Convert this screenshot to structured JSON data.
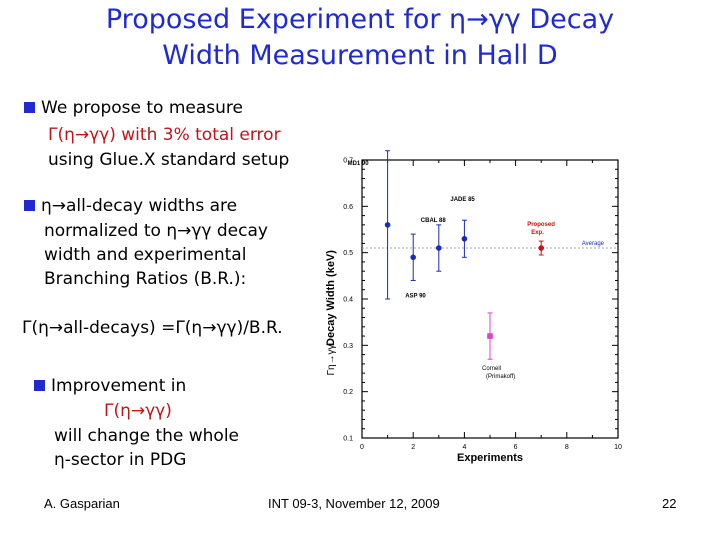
{
  "slide": {
    "title_line1": "Proposed Experiment for η→γγ Decay",
    "title_line2": "Width Measurement in Hall D",
    "bullet1": {
      "line1": "We propose to measure",
      "line2": "Γ(η→γγ) with 3% total error",
      "line3": "using Glue.X standard setup"
    },
    "bullet2": {
      "line1_a": "η→all-decay",
      "line1_b": " widths are",
      "line2": "normalized to η→γγ decay",
      "line3": "width and experimental",
      "line4": "Branching Ratios (B.R.):"
    },
    "formula": "Γ(η→all-decays) =Γ(η→γγ)/B.R.",
    "bullet3": {
      "line1": "Improvement in",
      "line2": "Γ(η→γγ)",
      "line3": "will change the whole",
      "line4": "η-sector in PDG"
    },
    "footer_author": "A. Gasparian",
    "footer_event": "INT 09-3, November 12, 2009",
    "footer_page": "22",
    "colors": {
      "title": "#1f2bd0",
      "accent_red": "#c0141a",
      "bullet_square": "#1f2bd0"
    }
  },
  "chart_data": {
    "type": "scatter",
    "xlabel": "Experiments",
    "ylabel": "Decay Width (keV)",
    "ylabel_symbol": "Γη→γγ",
    "xlim": [
      0,
      10
    ],
    "ylim": [
      0.1,
      0.7
    ],
    "x_ticks": [
      "0",
      "2",
      "4",
      "6",
      "8",
      "10"
    ],
    "y_ticks": [
      "0.1",
      "0.2",
      "0.3",
      "0.4",
      "0.5",
      "0.6",
      "0.7"
    ],
    "average": 0.51,
    "average_label": "Average",
    "points": [
      {
        "x": 1,
        "y": 0.56,
        "err": 0.16,
        "label": "MD1 90",
        "color": "#1a2bb8"
      },
      {
        "x": 2,
        "y": 0.49,
        "err": 0.05,
        "label": "ASP 90",
        "color": "#1a2bb8"
      },
      {
        "x": 3,
        "y": 0.51,
        "err": 0.05,
        "label": "CBAL 88",
        "color": "#1a2bb8"
      },
      {
        "x": 4,
        "y": 0.53,
        "err": 0.04,
        "label": "JADE 85",
        "color": "#1a2bb8"
      },
      {
        "x": 5,
        "y": 0.32,
        "err": 0.05,
        "label": "Cornell (Primakoff)",
        "color": "#e040c8"
      },
      {
        "x": 7,
        "y": 0.51,
        "err": 0.015,
        "label": "Proposed Exp.",
        "color": "#d01010"
      }
    ]
  }
}
